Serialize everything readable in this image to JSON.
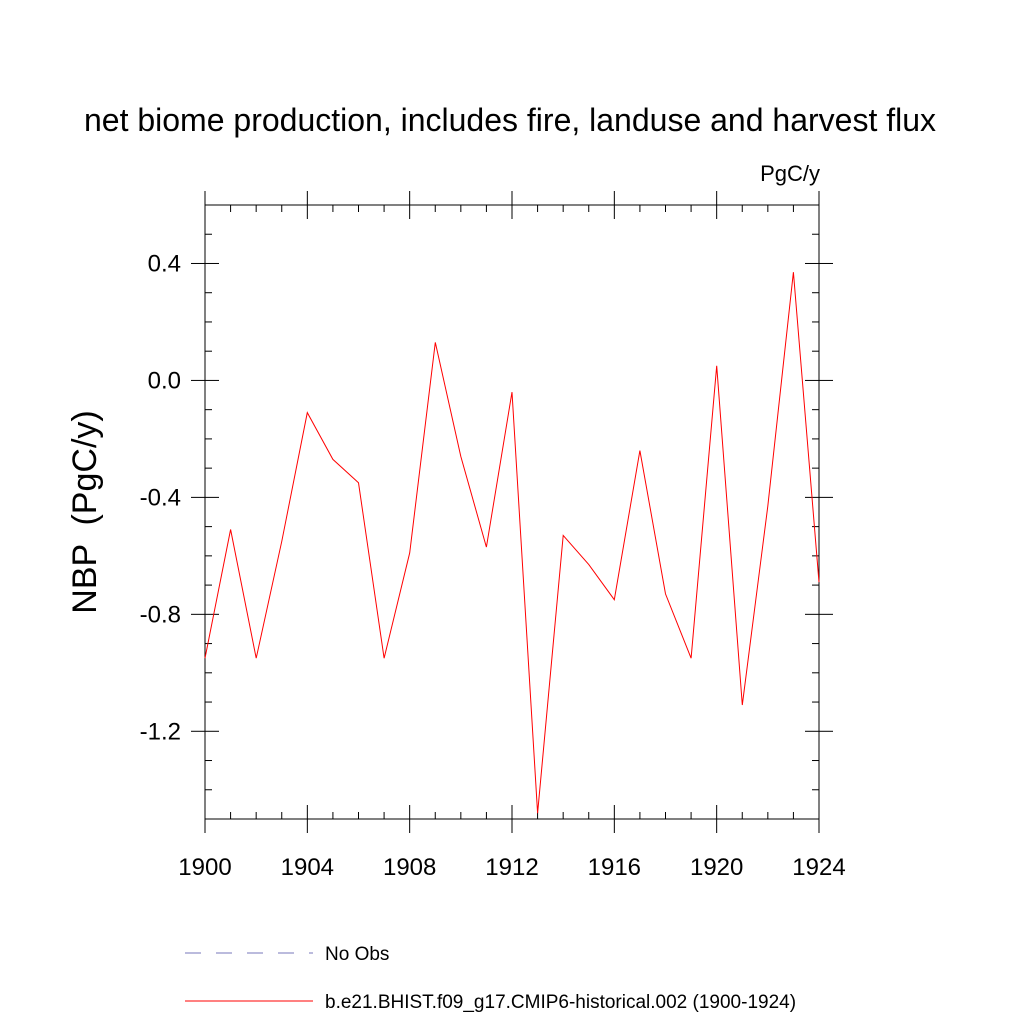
{
  "chart_data": {
    "type": "line",
    "title": "net biome production, includes fire, landuse and harvest flux",
    "units": "PgC/y",
    "ylabel": "NBP  (PgC/y)",
    "xlabel": "",
    "xlim": [
      1900,
      1924
    ],
    "ylim": [
      -1.5,
      0.6
    ],
    "x_ticks": [
      1900,
      1904,
      1908,
      1912,
      1916,
      1920,
      1924
    ],
    "x_tick_labels": [
      "1900",
      "1904",
      "1908",
      "1912",
      "1916",
      "1920",
      "1924"
    ],
    "y_ticks": [
      -1.2,
      -0.8,
      -0.4,
      0.0,
      0.4
    ],
    "y_tick_labels": [
      "-1.2",
      "-0.8",
      "-0.4",
      "0.0",
      "0.4"
    ],
    "grid": false,
    "legend_position": "bottom",
    "series": [
      {
        "name": "b.e21.BHIST.f09_g17.CMIP6-historical.002 (1900-1924)",
        "color": "#ff0000",
        "style": "solid",
        "x": [
          1900,
          1901,
          1902,
          1903,
          1904,
          1905,
          1906,
          1907,
          1908,
          1909,
          1910,
          1911,
          1912,
          1913,
          1914,
          1915,
          1916,
          1917,
          1918,
          1919,
          1920,
          1921,
          1922,
          1923,
          1924
        ],
        "y": [
          -0.95,
          -0.51,
          -0.95,
          -0.55,
          -0.11,
          -0.27,
          -0.35,
          -0.95,
          -0.59,
          0.13,
          -0.26,
          -0.57,
          -0.04,
          -1.48,
          -0.53,
          -0.63,
          -0.75,
          -0.24,
          -0.73,
          -0.95,
          0.05,
          -1.11,
          -0.43,
          0.37,
          -0.69
        ]
      }
    ],
    "legend": [
      {
        "label": "No Obs",
        "color": "#7777bb",
        "style": "dashed"
      },
      {
        "label": "b.e21.BHIST.f09_g17.CMIP6-historical.002 (1900-1924)",
        "color": "#ff0000",
        "style": "solid"
      }
    ]
  }
}
